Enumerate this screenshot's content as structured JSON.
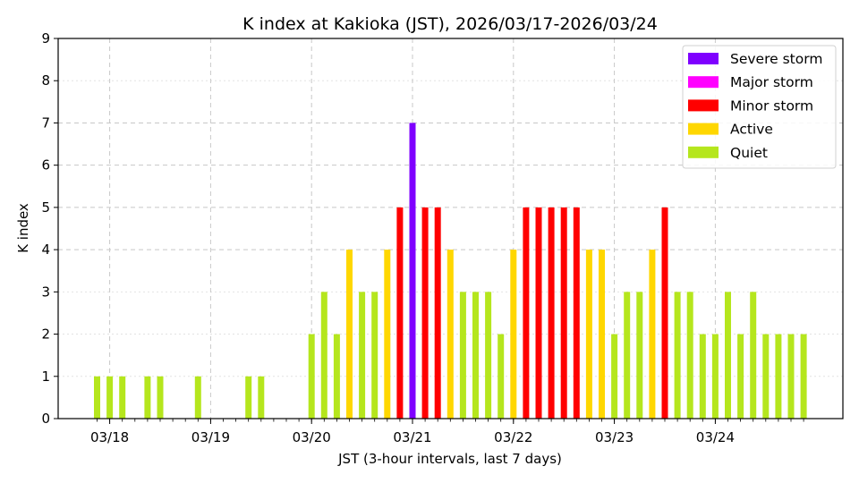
{
  "chart_data": {
    "type": "bar",
    "title": "K index at Kakioka (JST), 2026/03/17-2026/03/24",
    "xlabel": "JST (3-hour intervals, last 7 days)",
    "ylabel": "K index",
    "ylim": [
      0,
      9
    ],
    "yticks": [
      0,
      1,
      2,
      3,
      4,
      5,
      6,
      7,
      8,
      9
    ],
    "grid": true,
    "legend_position": "top-right",
    "day_labels": [
      "03/18",
      "03/19",
      "03/20",
      "03/21",
      "03/22",
      "03/23",
      "03/24"
    ],
    "interval_hours": 3,
    "categories_legend": [
      {
        "name": "Severe storm",
        "color": "#7f00ff"
      },
      {
        "name": "Major storm",
        "color": "#ff00ff"
      },
      {
        "name": "Minor storm",
        "color": "#ff0000"
      },
      {
        "name": "Active",
        "color": "#ffd700"
      },
      {
        "name": "Quiet",
        "color": "#b5e61d"
      }
    ],
    "values": [
      1,
      1,
      1,
      0,
      1,
      1,
      0,
      0,
      1,
      0,
      0,
      0,
      1,
      1,
      0,
      0,
      0,
      2,
      3,
      2,
      4,
      3,
      3,
      4,
      5,
      7,
      5,
      5,
      4,
      3,
      3,
      3,
      2,
      4,
      5,
      5,
      5,
      5,
      5,
      4,
      4,
      2,
      3,
      3,
      4,
      5,
      3,
      3,
      2,
      2,
      3,
      2,
      3,
      2,
      2,
      2,
      2
    ]
  }
}
